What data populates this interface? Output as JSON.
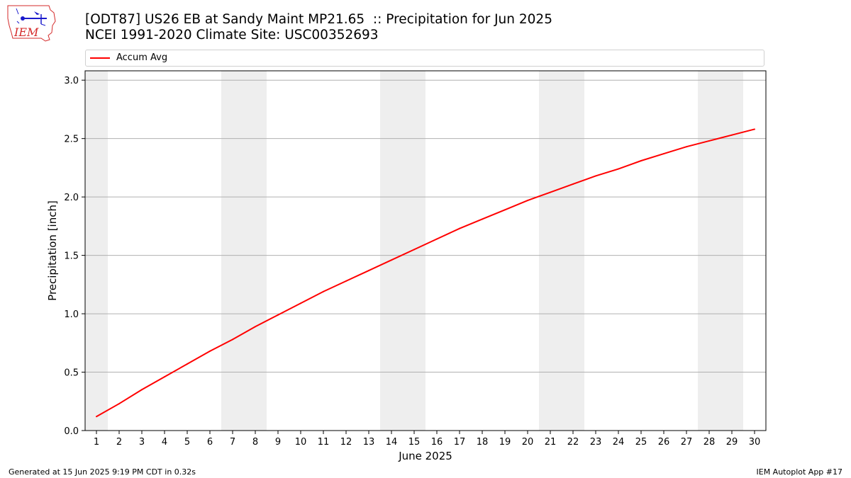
{
  "title_line1": "[ODT87] US26 EB at Sandy Maint MP21.65  :: Precipitation for Jun 2025",
  "title_line2": "NCEI 1991-2020 Climate Site: USC00352693",
  "logo_text": "IEM",
  "footer_left": "Generated at 15 Jun 2025 9:19 PM CDT in 0.32s",
  "footer_right": "IEM Autoplot App #17",
  "colors": {
    "series": "#ff0000",
    "weekend_band": "#eeeeee",
    "grid": "#b0b0b0",
    "logo_red": "#d42a2a",
    "logo_blue": "#1a1acc"
  },
  "chart_data": {
    "type": "line",
    "title": "[ODT87] US26 EB at Sandy Maint MP21.65  :: Precipitation for Jun 2025",
    "subtitle": "NCEI 1991-2020 Climate Site: USC00352693",
    "xlabel": "June 2025",
    "ylabel": "Precipitation [inch]",
    "x": [
      1,
      2,
      3,
      4,
      5,
      6,
      7,
      8,
      9,
      10,
      11,
      12,
      13,
      14,
      15,
      16,
      17,
      18,
      19,
      20,
      21,
      22,
      23,
      24,
      25,
      26,
      27,
      28,
      29,
      30
    ],
    "xlim": [
      0.5,
      30.5
    ],
    "ylim": [
      0,
      3.08
    ],
    "yticks": [
      0.0,
      0.5,
      1.0,
      1.5,
      2.0,
      2.5,
      3.0
    ],
    "ytick_labels": [
      "0.0",
      "0.5",
      "1.0",
      "1.5",
      "2.0",
      "2.5",
      "3.0"
    ],
    "grid": "horizontal",
    "legend_position": "top, above plot",
    "weekend_bands": [
      [
        0.5,
        1.5
      ],
      [
        6.5,
        8.5
      ],
      [
        13.5,
        15.5
      ],
      [
        20.5,
        22.5
      ],
      [
        27.5,
        29.5
      ]
    ],
    "series": [
      {
        "name": "Accum Avg",
        "color": "#ff0000",
        "values": [
          0.12,
          0.23,
          0.35,
          0.46,
          0.57,
          0.68,
          0.78,
          0.89,
          0.99,
          1.09,
          1.19,
          1.28,
          1.37,
          1.46,
          1.55,
          1.64,
          1.73,
          1.81,
          1.89,
          1.97,
          2.04,
          2.11,
          2.18,
          2.24,
          2.31,
          2.37,
          2.43,
          2.48,
          2.53,
          2.58
        ]
      }
    ]
  }
}
